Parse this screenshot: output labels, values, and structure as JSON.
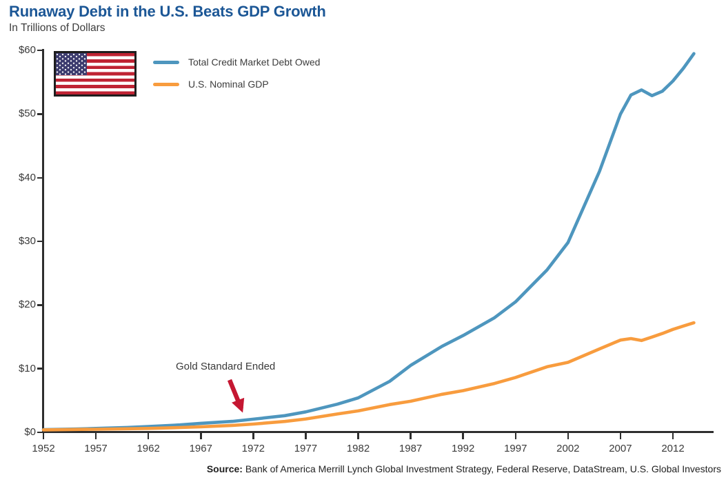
{
  "header": {
    "title": "Runaway Debt in the U.S. Beats GDP Growth",
    "subtitle": "In Trillions of Dollars"
  },
  "legend": {
    "items": [
      {
        "label": "Total Credit Market Debt Owed",
        "color": "#4E96BE"
      },
      {
        "label": "U.S. Nominal GDP",
        "color": "#F89C3E"
      }
    ],
    "flag": "us-flag"
  },
  "annotation": {
    "text": "Gold Standard Ended",
    "arrow_color": "#C51732",
    "points_at_year": 1971
  },
  "source": {
    "label_bold": "Source:",
    "label_rest": " Bank of America Merrill Lynch Global Investment Strategy, Federal Reserve, DataStream, U.S. Global Investors"
  },
  "chart_data": {
    "type": "line",
    "title": "Runaway Debt in the U.S. Beats GDP Growth",
    "units": "Trillions of Dollars",
    "xlabel": "",
    "ylabel": "",
    "grid": false,
    "legend_position": "top-left",
    "xlim": [
      1952,
      2016.5
    ],
    "ylim": [
      0,
      60
    ],
    "x_ticks": [
      1952,
      1957,
      1962,
      1967,
      1972,
      1977,
      1982,
      1987,
      1992,
      1997,
      2002,
      2007,
      2012
    ],
    "y_ticks": [
      {
        "value": 0,
        "label": "$0"
      },
      {
        "value": 10,
        "label": "$10"
      },
      {
        "value": 20,
        "label": "$20"
      },
      {
        "value": 30,
        "label": "$30"
      },
      {
        "value": 40,
        "label": "$40"
      },
      {
        "value": 50,
        "label": "$50"
      },
      {
        "value": 60,
        "label": "$60"
      }
    ],
    "x": [
      1952,
      1955,
      1957,
      1960,
      1962,
      1965,
      1967,
      1970,
      1972,
      1975,
      1977,
      1980,
      1982,
      1985,
      1987,
      1990,
      1992,
      1995,
      1997,
      2000,
      2002,
      2005,
      2007,
      2008,
      2009,
      2010,
      2011,
      2012,
      2013,
      2014
    ],
    "series": [
      {
        "name": "Total Credit Market Debt Owed",
        "color": "#4E96BE",
        "values": [
          0.4,
          0.5,
          0.6,
          0.75,
          0.9,
          1.15,
          1.4,
          1.7,
          2.05,
          2.6,
          3.2,
          4.4,
          5.4,
          8.0,
          10.5,
          13.5,
          15.2,
          18.0,
          20.5,
          25.5,
          29.8,
          41.0,
          50.0,
          53.0,
          53.8,
          52.9,
          53.6,
          55.2,
          57.2,
          59.5
        ]
      },
      {
        "name": "U.S. Nominal GDP",
        "color": "#F89C3E",
        "values": [
          0.37,
          0.43,
          0.47,
          0.54,
          0.6,
          0.74,
          0.86,
          1.07,
          1.28,
          1.69,
          2.08,
          2.86,
          3.35,
          4.35,
          4.87,
          5.96,
          6.54,
          7.66,
          8.61,
          10.28,
          10.98,
          13.09,
          14.48,
          14.72,
          14.42,
          14.96,
          15.52,
          16.16,
          16.69,
          17.2
        ]
      }
    ]
  }
}
